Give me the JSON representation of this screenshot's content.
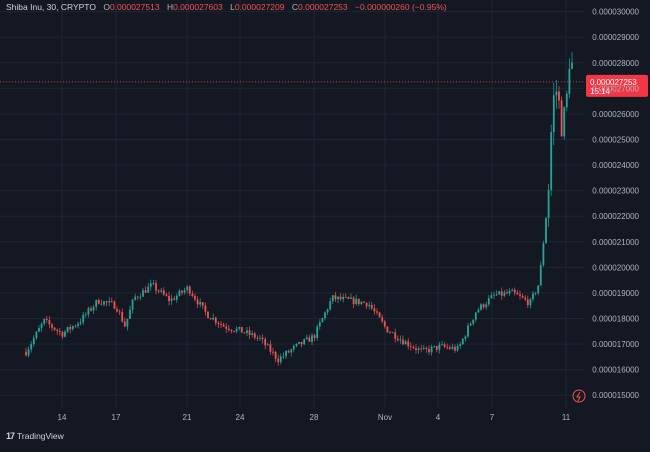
{
  "header": {
    "symbol": "Shiba Inu, 30, CRYPTO",
    "open_label": "O",
    "open": "0.000027513",
    "high_label": "H",
    "high": "0.000027603",
    "low_label": "L",
    "low": "0.000027209",
    "close_label": "C",
    "close": "0.000027253",
    "change": "−0.000000260 (−0.95%)"
  },
  "price_badge": {
    "price": "0.000027253",
    "countdown": "15:14"
  },
  "branding": {
    "logo_glyph": "17",
    "name": "TradingView"
  },
  "colors": {
    "background": "#141823",
    "grid": "#1f2430",
    "up": "#26a69a",
    "down": "#ef5350",
    "text": "#b2b5be",
    "badge": "#f23645"
  },
  "icons": {
    "goto_realtime": "lightning-bolt-icon"
  },
  "chart_data": {
    "type": "candlestick",
    "title": "",
    "ylim": [
      1.45e-05,
      3.03e-05
    ],
    "y_ticks": [
      "0.000015000",
      "0.000016000",
      "0.000017000",
      "0.000018000",
      "0.000019000",
      "0.000020000",
      "0.000021000",
      "0.000022000",
      "0.000023000",
      "0.000024000",
      "0.000025000",
      "0.000026000",
      "0.000027000",
      "0.000028000",
      "0.000029000",
      "0.000030000"
    ],
    "x_ticks": [
      "14",
      "17",
      "21",
      "24",
      "28",
      "Nov",
      "4",
      "7",
      "11"
    ],
    "last_price": 2.7253e-05,
    "grid": true,
    "series_points": [
      {
        "x": "Oct 12",
        "y": 1.67e-05
      },
      {
        "x": "Oct 13",
        "y": 1.79e-05
      },
      {
        "x": "Oct 14",
        "y": 1.74e-05
      },
      {
        "x": "Oct 15",
        "y": 1.79e-05
      },
      {
        "x": "Oct 16",
        "y": 1.87e-05
      },
      {
        "x": "Oct 17",
        "y": 1.85e-05
      },
      {
        "x": "Oct 17 12:00",
        "y": 1.77e-05
      },
      {
        "x": "Oct 18",
        "y": 1.88e-05
      },
      {
        "x": "Oct 19",
        "y": 1.93e-05
      },
      {
        "x": "Oct 20",
        "y": 1.87e-05
      },
      {
        "x": "Oct 21",
        "y": 1.92e-05
      },
      {
        "x": "Oct 22",
        "y": 1.82e-05
      },
      {
        "x": "Oct 23",
        "y": 1.77e-05
      },
      {
        "x": "Oct 24",
        "y": 1.75e-05
      },
      {
        "x": "Oct 25",
        "y": 1.72e-05
      },
      {
        "x": "Oct 26",
        "y": 1.64e-05
      },
      {
        "x": "Oct 27",
        "y": 1.69e-05
      },
      {
        "x": "Oct 28",
        "y": 1.73e-05
      },
      {
        "x": "Oct 29",
        "y": 1.88e-05
      },
      {
        "x": "Oct 30",
        "y": 1.87e-05
      },
      {
        "x": "Oct 31",
        "y": 1.86e-05
      },
      {
        "x": "Nov 1",
        "y": 1.76e-05
      },
      {
        "x": "Nov 2",
        "y": 1.71e-05
      },
      {
        "x": "Nov 3",
        "y": 1.67e-05
      },
      {
        "x": "Nov 4",
        "y": 1.69e-05
      },
      {
        "x": "Nov 5",
        "y": 1.68e-05
      },
      {
        "x": "Nov 6",
        "y": 1.83e-05
      },
      {
        "x": "Nov 7",
        "y": 1.89e-05
      },
      {
        "x": "Nov 8",
        "y": 1.9e-05
      },
      {
        "x": "Nov 9",
        "y": 1.86e-05
      },
      {
        "x": "Nov 9 12:00",
        "y": 1.94e-05
      },
      {
        "x": "Nov 10",
        "y": 2.28e-05
      },
      {
        "x": "Nov 10 06:00",
        "y": 2.65e-05
      },
      {
        "x": "Nov 10 12:00",
        "y": 2.7e-05
      },
      {
        "x": "Nov 10 18:00",
        "y": 2.55e-05
      },
      {
        "x": "Nov 11",
        "y": 2.63e-05
      },
      {
        "x": "Nov 11 06:00",
        "y": 2.88e-05
      },
      {
        "x": "Nov 11 09:00",
        "y": 2.7253e-05
      }
    ]
  }
}
